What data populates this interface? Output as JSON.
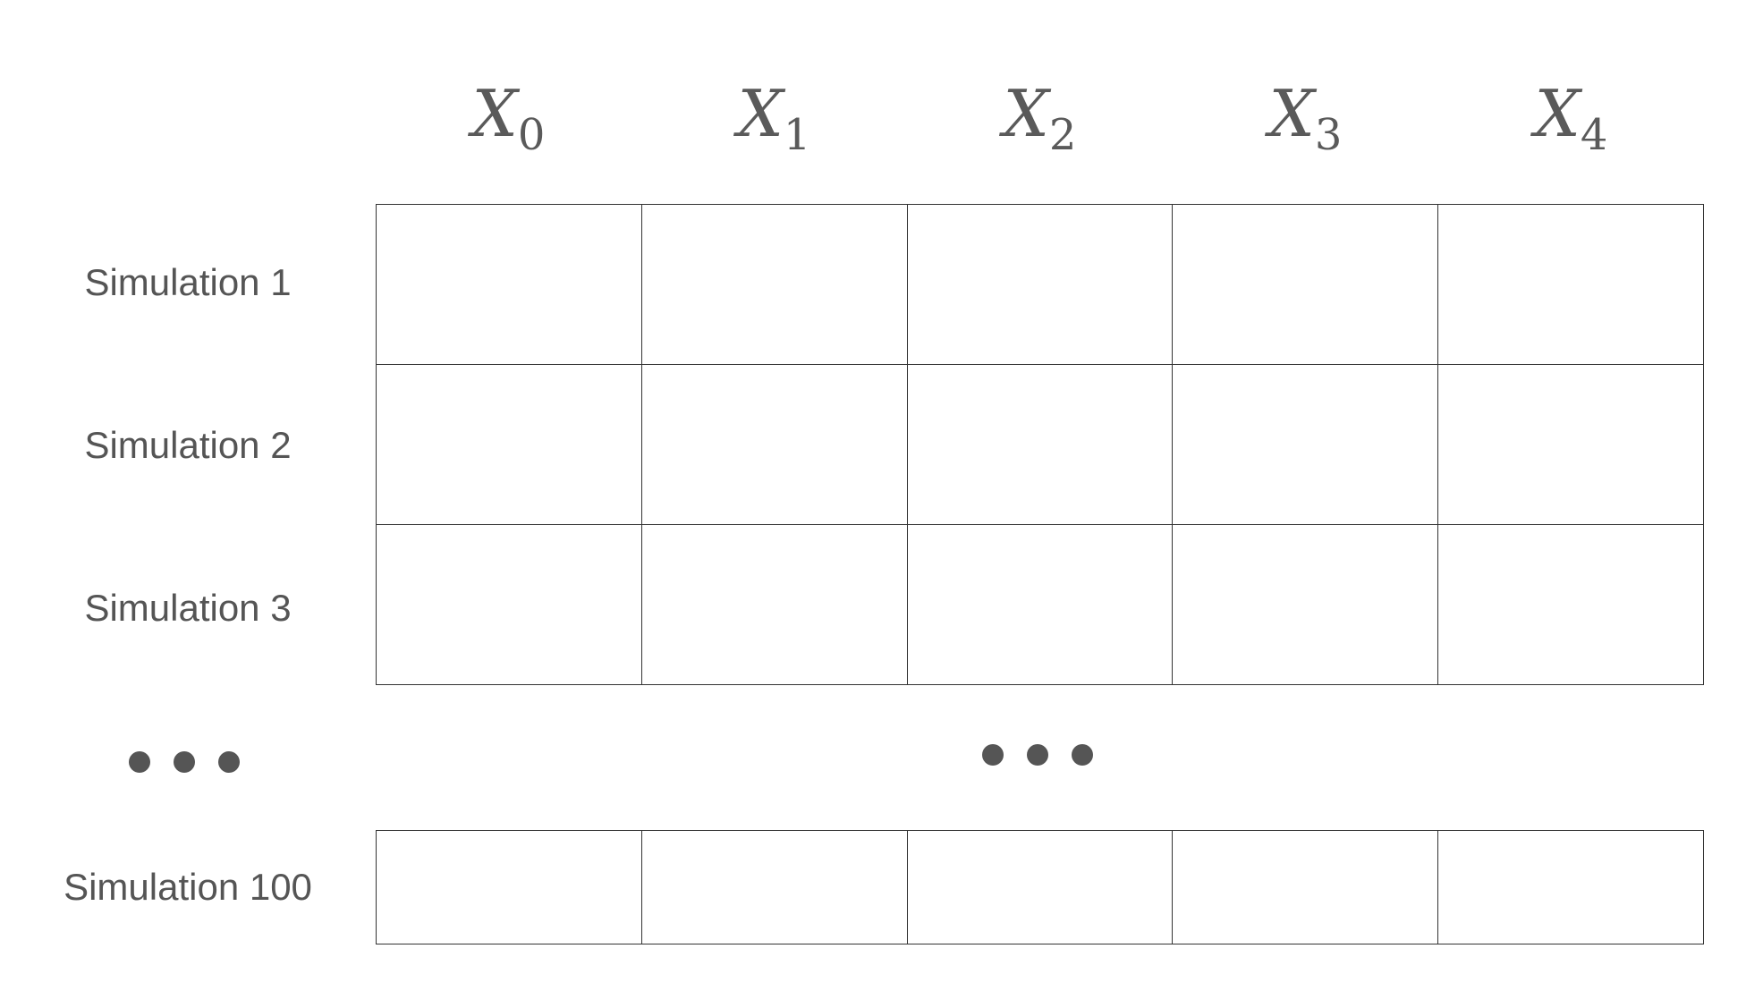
{
  "columns": [
    {
      "var": "X",
      "sub": "0"
    },
    {
      "var": "X",
      "sub": "1"
    },
    {
      "var": "X",
      "sub": "2"
    },
    {
      "var": "X",
      "sub": "3"
    },
    {
      "var": "X",
      "sub": "4"
    }
  ],
  "rows": [
    {
      "label": "Simulation 1"
    },
    {
      "label": "Simulation 2"
    },
    {
      "label": "Simulation 3"
    }
  ],
  "last_row": {
    "label": "Simulation 100"
  },
  "colors": {
    "text": "#555555",
    "grid_line": "#333333",
    "dots": "#555555"
  }
}
